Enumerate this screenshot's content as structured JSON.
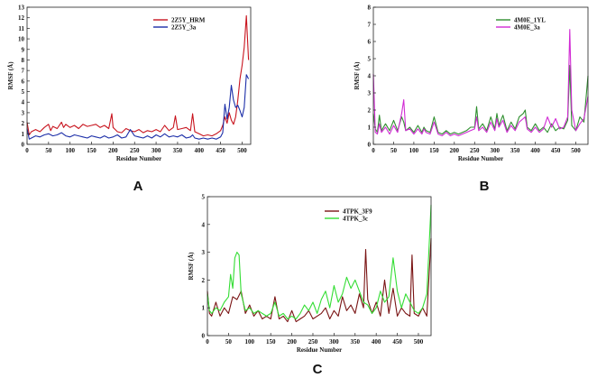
{
  "figure": {
    "panel_labels": [
      "A",
      "B",
      "C"
    ]
  },
  "chart_data": [
    {
      "id": "A",
      "type": "line",
      "title": "",
      "xlabel": "Residue Number",
      "ylabel": "RMSF (Å)",
      "xlim": [
        0,
        520
      ],
      "ylim": [
        0,
        13
      ],
      "xticks": [
        0,
        50,
        100,
        150,
        200,
        250,
        300,
        350,
        400,
        450,
        500
      ],
      "yticks": [
        0,
        1,
        2,
        3,
        4,
        5,
        6,
        7,
        8,
        9,
        10,
        11,
        12,
        13
      ],
      "legend_position": "top-right",
      "series": [
        {
          "name": "2Z5Y_HRM",
          "color": "#c8141e",
          "x": [
            0,
            5,
            10,
            20,
            30,
            40,
            50,
            55,
            60,
            70,
            80,
            85,
            90,
            100,
            110,
            120,
            130,
            140,
            150,
            160,
            170,
            180,
            190,
            197,
            200,
            205,
            210,
            220,
            230,
            240,
            250,
            260,
            270,
            280,
            290,
            300,
            310,
            320,
            330,
            340,
            345,
            350,
            360,
            370,
            380,
            385,
            390,
            400,
            410,
            420,
            430,
            440,
            450,
            455,
            460,
            465,
            470,
            475,
            480,
            485,
            490,
            495,
            500,
            505,
            510,
            515
          ],
          "y": [
            2.1,
            0.9,
            1.2,
            1.4,
            1.2,
            1.6,
            1.9,
            1.3,
            1.7,
            1.5,
            2.1,
            1.6,
            1.9,
            1.6,
            1.8,
            1.5,
            1.9,
            1.7,
            1.8,
            1.9,
            1.6,
            1.8,
            1.5,
            2.9,
            1.6,
            1.4,
            1.2,
            1.1,
            1.5,
            1.3,
            1.2,
            1.4,
            1.1,
            1.3,
            1.2,
            1.4,
            1.2,
            1.8,
            1.3,
            1.6,
            2.7,
            1.4,
            1.5,
            1.6,
            1.3,
            2.9,
            1.2,
            1.0,
            0.8,
            0.9,
            0.8,
            1.0,
            1.3,
            1.8,
            2.6,
            2.0,
            3.0,
            2.3,
            1.9,
            2.6,
            4.2,
            6.2,
            7.5,
            9.2,
            12.2,
            8.0
          ]
        },
        {
          "name": "2Z5Y_3a",
          "color": "#1c2ea8",
          "x": [
            0,
            5,
            10,
            20,
            30,
            40,
            50,
            60,
            70,
            80,
            90,
            100,
            110,
            120,
            130,
            140,
            150,
            160,
            170,
            180,
            190,
            200,
            210,
            220,
            230,
            240,
            250,
            260,
            270,
            280,
            290,
            300,
            310,
            320,
            330,
            340,
            350,
            360,
            370,
            380,
            385,
            390,
            400,
            410,
            420,
            430,
            440,
            450,
            455,
            460,
            465,
            470,
            475,
            480,
            485,
            490,
            495,
            500,
            505,
            510,
            515
          ],
          "y": [
            1.5,
            0.5,
            0.6,
            0.8,
            0.7,
            0.9,
            1.0,
            0.8,
            0.9,
            1.1,
            0.8,
            0.7,
            0.9,
            0.8,
            0.7,
            0.6,
            0.8,
            0.7,
            0.6,
            0.8,
            0.6,
            0.7,
            0.9,
            0.6,
            0.7,
            1.4,
            0.8,
            0.7,
            0.6,
            0.8,
            0.6,
            0.9,
            0.7,
            1.0,
            0.7,
            0.8,
            0.7,
            0.9,
            0.6,
            0.7,
            0.9,
            0.6,
            0.5,
            0.6,
            0.5,
            0.6,
            0.5,
            0.7,
            1.1,
            3.8,
            2.4,
            3.5,
            5.6,
            4.2,
            3.5,
            3.7,
            3.2,
            2.6,
            3.5,
            6.6,
            6.2
          ]
        }
      ]
    },
    {
      "id": "B",
      "type": "line",
      "title": "",
      "xlabel": "Residue Number",
      "ylabel": "RMSF (Å)",
      "xlim": [
        0,
        530
      ],
      "ylim": [
        0,
        8
      ],
      "xticks": [
        0,
        50,
        100,
        150,
        200,
        250,
        300,
        350,
        400,
        450,
        500
      ],
      "yticks": [
        0,
        1,
        2,
        3,
        4,
        5,
        6,
        7,
        8
      ],
      "legend_position": "top-right",
      "series": [
        {
          "name": "4M0E_1YL",
          "color": "#2f8f2f",
          "x": [
            0,
            5,
            10,
            15,
            20,
            30,
            40,
            50,
            60,
            70,
            75,
            80,
            90,
            100,
            110,
            120,
            125,
            130,
            140,
            150,
            160,
            170,
            180,
            190,
            200,
            210,
            220,
            230,
            240,
            250,
            255,
            260,
            270,
            280,
            290,
            300,
            305,
            310,
            320,
            330,
            340,
            350,
            360,
            370,
            375,
            380,
            390,
            400,
            410,
            420,
            430,
            440,
            450,
            460,
            470,
            480,
            485,
            490,
            500,
            510,
            520,
            530
          ],
          "y": [
            1.8,
            0.9,
            0.7,
            1.7,
            0.8,
            1.2,
            0.8,
            1.4,
            0.8,
            1.6,
            1.3,
            0.8,
            1.0,
            0.7,
            1.1,
            0.7,
            1.0,
            0.8,
            0.7,
            1.6,
            0.7,
            0.6,
            0.8,
            0.6,
            0.7,
            0.6,
            0.7,
            0.8,
            1.0,
            1.0,
            2.2,
            0.9,
            1.2,
            0.8,
            1.6,
            0.9,
            1.8,
            1.1,
            1.7,
            0.8,
            1.3,
            0.9,
            1.6,
            1.8,
            2.0,
            1.0,
            0.8,
            1.2,
            0.8,
            1.0,
            0.7,
            1.2,
            0.8,
            1.0,
            0.9,
            1.4,
            4.6,
            1.1,
            0.8,
            1.6,
            1.3,
            4.0
          ]
        },
        {
          "name": "4M0E_3a",
          "color": "#d12bd4",
          "x": [
            0,
            5,
            10,
            15,
            20,
            30,
            40,
            50,
            60,
            70,
            75,
            80,
            90,
            100,
            110,
            120,
            125,
            130,
            140,
            150,
            160,
            170,
            180,
            190,
            200,
            210,
            220,
            230,
            240,
            250,
            255,
            260,
            270,
            280,
            290,
            300,
            305,
            310,
            320,
            330,
            340,
            350,
            360,
            370,
            375,
            380,
            390,
            400,
            410,
            420,
            430,
            440,
            450,
            460,
            470,
            480,
            485,
            490,
            500,
            510,
            520,
            530
          ],
          "y": [
            4.1,
            0.7,
            0.6,
            1.2,
            0.7,
            1.0,
            0.6,
            1.1,
            0.7,
            1.8,
            2.6,
            0.8,
            0.9,
            0.6,
            0.9,
            0.6,
            0.9,
            0.7,
            0.6,
            1.3,
            0.6,
            0.5,
            0.7,
            0.5,
            0.6,
            0.5,
            0.6,
            0.7,
            0.8,
            0.9,
            1.6,
            0.8,
            1.0,
            0.7,
            1.3,
            0.8,
            1.5,
            1.0,
            1.4,
            0.7,
            1.1,
            0.8,
            1.3,
            1.5,
            1.6,
            0.9,
            0.7,
            1.0,
            0.7,
            0.9,
            1.6,
            1.0,
            1.5,
            0.9,
            1.0,
            1.6,
            6.7,
            2.0,
            0.8,
            1.2,
            1.5,
            2.8
          ]
        }
      ]
    },
    {
      "id": "C",
      "type": "line",
      "title": "",
      "xlabel": "Residue Number",
      "ylabel": "RMSF (Å)",
      "xlim": [
        0,
        530
      ],
      "ylim": [
        0,
        5
      ],
      "xticks": [
        0,
        50,
        100,
        150,
        200,
        250,
        300,
        350,
        400,
        450,
        500
      ],
      "yticks": [
        0,
        1,
        2,
        3,
        4,
        5
      ],
      "legend_position": "top-center",
      "series": [
        {
          "name": "4TPK_3F9",
          "color": "#7a1414",
          "x": [
            0,
            5,
            10,
            20,
            30,
            40,
            50,
            60,
            70,
            80,
            90,
            100,
            110,
            120,
            130,
            140,
            150,
            160,
            170,
            180,
            190,
            200,
            210,
            220,
            230,
            240,
            250,
            260,
            270,
            280,
            290,
            300,
            310,
            320,
            330,
            340,
            350,
            360,
            370,
            375,
            380,
            390,
            400,
            410,
            420,
            430,
            440,
            450,
            460,
            470,
            480,
            485,
            490,
            500,
            510,
            520,
            530
          ],
          "y": [
            1.6,
            0.8,
            0.7,
            1.2,
            0.7,
            1.0,
            0.8,
            1.4,
            1.3,
            1.6,
            0.8,
            1.1,
            0.7,
            0.9,
            0.6,
            0.7,
            0.6,
            1.4,
            0.6,
            0.7,
            0.5,
            0.9,
            0.5,
            0.6,
            0.7,
            0.9,
            0.6,
            0.7,
            0.8,
            1.0,
            0.6,
            0.9,
            0.7,
            1.4,
            0.9,
            1.1,
            0.8,
            1.5,
            1.0,
            3.1,
            1.3,
            0.8,
            1.2,
            0.7,
            2.0,
            0.8,
            1.7,
            0.7,
            1.0,
            0.8,
            0.7,
            2.9,
            0.8,
            0.7,
            1.0,
            0.7,
            3.5
          ]
        },
        {
          "name": "4TPK_3c",
          "color": "#33dd33",
          "x": [
            0,
            5,
            10,
            20,
            30,
            40,
            50,
            55,
            60,
            65,
            70,
            75,
            80,
            90,
            100,
            110,
            120,
            130,
            140,
            150,
            160,
            170,
            180,
            190,
            200,
            210,
            220,
            230,
            240,
            250,
            260,
            270,
            280,
            290,
            300,
            310,
            320,
            330,
            340,
            350,
            360,
            370,
            380,
            390,
            400,
            410,
            420,
            430,
            440,
            450,
            460,
            470,
            480,
            490,
            500,
            510,
            520,
            530
          ],
          "y": [
            1.5,
            0.9,
            0.8,
            1.0,
            0.9,
            1.2,
            1.4,
            2.2,
            1.7,
            2.8,
            3.0,
            2.9,
            1.5,
            0.9,
            1.0,
            0.8,
            0.9,
            0.8,
            0.7,
            0.8,
            1.2,
            0.7,
            0.8,
            0.6,
            0.7,
            0.6,
            0.8,
            1.1,
            0.9,
            1.2,
            0.8,
            1.3,
            1.6,
            1.0,
            1.8,
            1.2,
            1.5,
            2.1,
            1.7,
            2.0,
            1.6,
            1.2,
            1.1,
            0.8,
            1.0,
            1.6,
            1.2,
            1.4,
            2.8,
            1.6,
            1.0,
            1.5,
            1.2,
            0.9,
            0.8,
            1.0,
            1.5,
            4.7
          ]
        }
      ]
    }
  ]
}
